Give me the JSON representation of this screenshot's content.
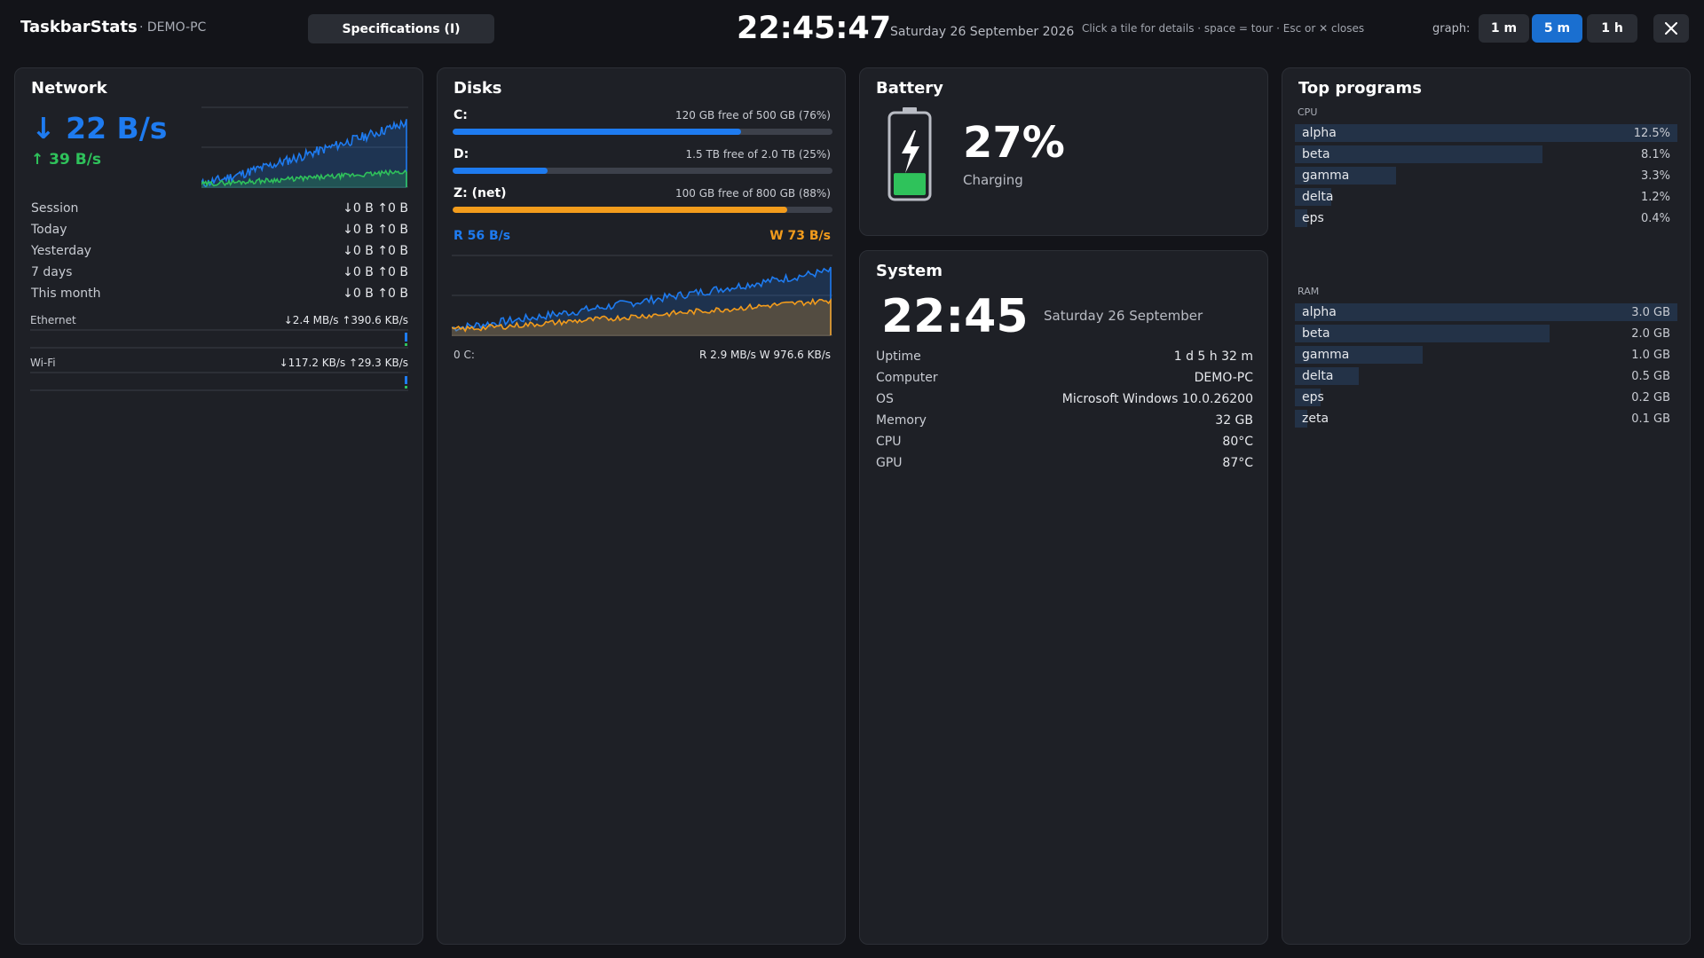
{
  "app": {
    "title": "TaskbarStats",
    "host": "· DEMO-PC",
    "spec_button": "Specifications  (I)",
    "clock": "22:45:47",
    "date": "Saturday 26 September 2026",
    "hint": "Click a tile for details  ·  space = tour  ·  Esc or ✕ closes",
    "graph_label": "graph:",
    "graph_buttons": [
      "1 m",
      "5 m",
      "1 h"
    ],
    "graph_active": "5 m",
    "close_icon": "close-icon"
  },
  "network": {
    "title": "Network",
    "down": "↓ 22 B/s",
    "up": "↑ 39 B/s",
    "stats": [
      {
        "label": "Session",
        "value": "↓0 B   ↑0 B"
      },
      {
        "label": "Today",
        "value": "↓0 B   ↑0 B"
      },
      {
        "label": "Yesterday",
        "value": "↓0 B   ↑0 B"
      },
      {
        "label": "7 days",
        "value": "↓0 B   ↑0 B"
      },
      {
        "label": "This month",
        "value": "↓0 B   ↑0 B"
      }
    ],
    "adapters": [
      {
        "name": "Ethernet",
        "rate": "↓2.4 MB/s   ↑390.6 KB/s"
      },
      {
        "name": "Wi-Fi",
        "rate": "↓117.2 KB/s   ↑29.3 KB/s"
      }
    ],
    "colors": {
      "down": "#1e7bf0",
      "up": "#2fc25b"
    }
  },
  "disks": {
    "title": "Disks",
    "drives": [
      {
        "name": "C:",
        "info": "120 GB free of 500 GB  (76%)",
        "used": 0.76,
        "color": "#1e7bf0"
      },
      {
        "name": "D:",
        "info": "1.5 TB free of 2.0 TB  (25%)",
        "used": 0.25,
        "color": "#1e7bf0"
      },
      {
        "name": "Z: (net)",
        "info": "100 GB free of 800 GB  (88%)",
        "used": 0.88,
        "color": "#f39c1c"
      }
    ],
    "read": "R  56 B/s",
    "write": "W  73 B/s",
    "footer_left": "0 C:",
    "footer_right": "R 2.9 MB/s    W 976.6 KB/s",
    "colors": {
      "read": "#1e7bf0",
      "write": "#f39c1c"
    }
  },
  "battery": {
    "title": "Battery",
    "percent": "27%",
    "level": 0.27,
    "status": "Charging",
    "icon": "battery-charging-icon",
    "color": "#2fc25b"
  },
  "system": {
    "title": "System",
    "clock": "22:45",
    "date": "Saturday 26 September",
    "rows": [
      {
        "label": "Uptime",
        "value": "1 d 5 h 32 m"
      },
      {
        "label": "Computer",
        "value": "DEMO-PC"
      },
      {
        "label": "OS",
        "value": "Microsoft Windows 10.0.26200"
      },
      {
        "label": "Memory",
        "value": "32 GB"
      },
      {
        "label": "CPU",
        "value": "80°C"
      },
      {
        "label": "GPU",
        "value": "87°C"
      }
    ]
  },
  "programs": {
    "title": "Top programs",
    "cpu_label": "CPU",
    "ram_label": "RAM",
    "cpu": [
      {
        "name": "alpha",
        "value": "12.5%",
        "share": 1.0
      },
      {
        "name": "beta",
        "value": "8.1%",
        "share": 0.648
      },
      {
        "name": "gamma",
        "value": "3.3%",
        "share": 0.264
      },
      {
        "name": "delta",
        "value": "1.2%",
        "share": 0.096
      },
      {
        "name": "eps",
        "value": "0.4%",
        "share": 0.032
      }
    ],
    "ram": [
      {
        "name": "alpha",
        "value": "3.0 GB",
        "share": 1.0
      },
      {
        "name": "beta",
        "value": "2.0 GB",
        "share": 0.667
      },
      {
        "name": "gamma",
        "value": "1.0 GB",
        "share": 0.333
      },
      {
        "name": "delta",
        "value": "0.5 GB",
        "share": 0.167
      },
      {
        "name": "eps",
        "value": "0.2 GB",
        "share": 0.067
      },
      {
        "name": "zeta",
        "value": "0.1 GB",
        "share": 0.033
      }
    ]
  }
}
